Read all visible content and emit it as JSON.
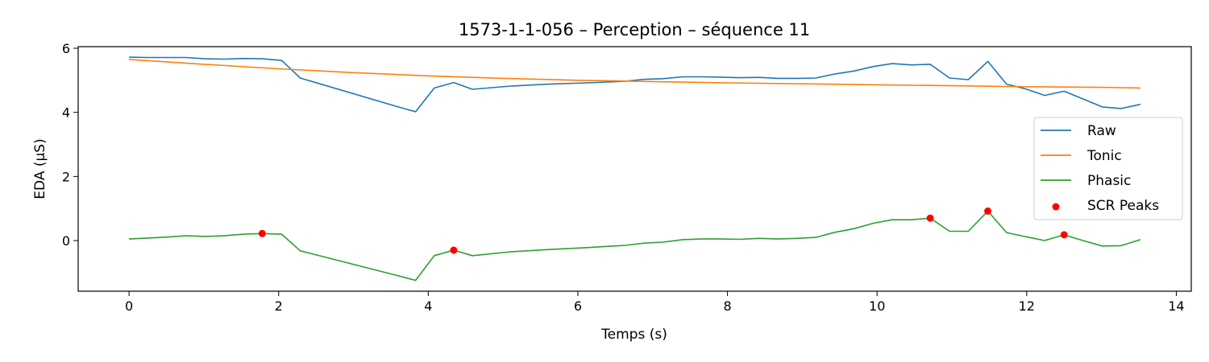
{
  "chart_data": {
    "type": "line",
    "title": "1573-1-1-056 – Perception – séquence 11",
    "xlabel": "Temps (s)",
    "ylabel": "EDA (µS)",
    "xlim": [
      -0.68,
      14.2
    ],
    "ylim": [
      -1.58,
      6.05
    ],
    "xticks": [
      0,
      2,
      4,
      6,
      8,
      10,
      12,
      14
    ],
    "yticks": [
      0,
      2,
      4,
      6
    ],
    "grid": false,
    "legend_position": "center-right",
    "series": [
      {
        "name": "Raw",
        "color": "#1f77b4",
        "type": "line",
        "x": [
          0,
          0.25,
          0.51,
          0.76,
          1.02,
          1.27,
          1.53,
          1.78,
          2.04,
          2.29,
          3.57,
          3.83,
          4.08,
          4.34,
          4.59,
          5.1,
          5.61,
          6.12,
          6.63,
          6.89,
          7.14,
          7.4,
          7.65,
          7.91,
          8.16,
          8.42,
          8.67,
          8.93,
          9.18,
          9.44,
          9.69,
          9.95,
          10.2,
          10.46,
          10.71,
          10.97,
          11.22,
          11.48,
          11.73,
          11.99,
          12.24,
          12.5,
          12.75,
          13.01,
          13.26,
          13.52
        ],
        "y": [
          5.72,
          5.71,
          5.71,
          5.71,
          5.67,
          5.66,
          5.68,
          5.67,
          5.62,
          5.07,
          4.19,
          4.02,
          4.76,
          4.93,
          4.72,
          4.82,
          4.88,
          4.92,
          4.97,
          5.03,
          5.05,
          5.11,
          5.11,
          5.1,
          5.08,
          5.09,
          5.06,
          5.06,
          5.07,
          5.2,
          5.29,
          5.43,
          5.52,
          5.48,
          5.5,
          5.07,
          5.02,
          5.59,
          4.88,
          4.73,
          4.53,
          4.66,
          4.42,
          4.17,
          4.12,
          4.25
        ]
      },
      {
        "name": "Tonic",
        "color": "#ff7f0e",
        "type": "line",
        "x": [
          0,
          1,
          2,
          3,
          4,
          5,
          6,
          7,
          8,
          9,
          10,
          11,
          12,
          13,
          13.52
        ],
        "y": [
          5.65,
          5.5,
          5.36,
          5.24,
          5.14,
          5.06,
          5.0,
          4.96,
          4.92,
          4.89,
          4.86,
          4.83,
          4.8,
          4.78,
          4.76
        ]
      },
      {
        "name": "Phasic",
        "color": "#2ca02c",
        "type": "line",
        "x": [
          0,
          0.25,
          0.51,
          0.76,
          1.02,
          1.27,
          1.53,
          1.78,
          2.04,
          2.29,
          3.57,
          3.83,
          4.08,
          4.34,
          4.59,
          5.1,
          5.61,
          6.12,
          6.63,
          6.89,
          7.14,
          7.4,
          7.65,
          7.91,
          8.16,
          8.42,
          8.67,
          8.93,
          9.18,
          9.44,
          9.69,
          9.95,
          10.2,
          10.46,
          10.71,
          10.97,
          11.22,
          11.48,
          11.73,
          11.99,
          12.24,
          12.5,
          12.75,
          13.01,
          13.26,
          13.52
        ],
        "y": [
          0.05,
          0.08,
          0.11,
          0.15,
          0.13,
          0.15,
          0.2,
          0.22,
          0.2,
          -0.32,
          -1.08,
          -1.24,
          -0.47,
          -0.3,
          -0.47,
          -0.35,
          -0.28,
          -0.22,
          -0.15,
          -0.08,
          -0.05,
          0.03,
          0.05,
          0.05,
          0.04,
          0.07,
          0.05,
          0.07,
          0.1,
          0.26,
          0.37,
          0.54,
          0.65,
          0.65,
          0.7,
          0.29,
          0.29,
          0.92,
          0.25,
          0.12,
          0.0,
          0.18,
          0.0,
          -0.17,
          -0.16,
          0.03
        ]
      },
      {
        "name": "SCR Peaks",
        "color": "#ff0000",
        "type": "scatter",
        "x": [
          1.78,
          4.34,
          10.71,
          11.48,
          12.5
        ],
        "y": [
          0.22,
          -0.3,
          0.7,
          0.92,
          0.18
        ]
      }
    ]
  }
}
